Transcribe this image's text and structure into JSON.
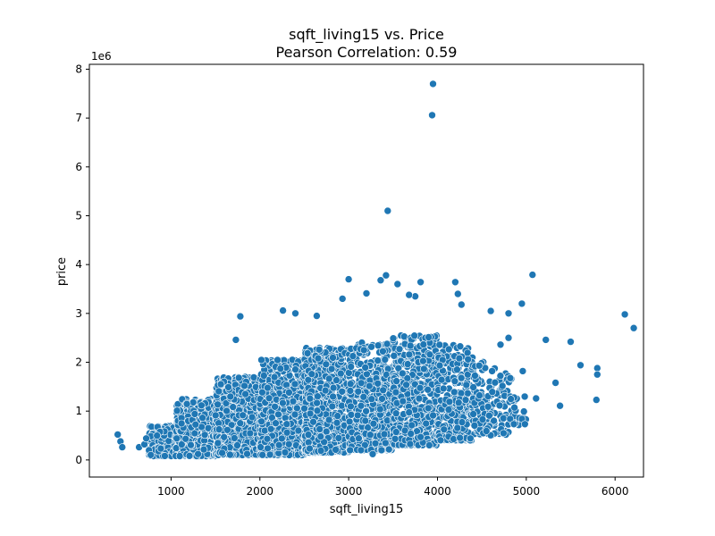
{
  "chart_data": {
    "type": "scatter",
    "title": "sqft_living15 vs. Price",
    "subtitle": "Pearson Correlation: 0.59",
    "xlabel": "sqft_living15",
    "ylabel": "price",
    "y_offset_label": "1e6",
    "xlim": [
      80,
      6320
    ],
    "ylim": [
      -0.35,
      8.1
    ],
    "x_ticks": [
      1000,
      2000,
      3000,
      4000,
      5000,
      6000
    ],
    "y_ticks": [
      0,
      1,
      2,
      3,
      4,
      5,
      6,
      7,
      8
    ],
    "y_unit": "1e6",
    "grid": false,
    "color": "#1f77b4",
    "series": [
      {
        "points": [
          [
            399,
            0.52
          ],
          [
            430,
            0.38
          ],
          [
            450,
            0.26
          ],
          [
            640,
            0.26
          ],
          [
            700,
            0.32
          ],
          [
            720,
            0.44
          ],
          [
            3950,
            7.7
          ],
          [
            3940,
            7.06
          ],
          [
            3440,
            5.1
          ],
          [
            3360,
            3.68
          ],
          [
            3000,
            3.7
          ],
          [
            3420,
            3.78
          ],
          [
            3550,
            3.6
          ],
          [
            5070,
            3.79
          ],
          [
            6110,
            2.98
          ],
          [
            6210,
            2.7
          ],
          [
            5800,
            1.88
          ],
          [
            5800,
            1.75
          ],
          [
            5790,
            1.23
          ],
          [
            5610,
            1.94
          ],
          [
            5500,
            2.42
          ],
          [
            5220,
            2.46
          ],
          [
            4950,
            3.2
          ],
          [
            4600,
            3.05
          ],
          [
            4230,
            3.4
          ],
          [
            4200,
            3.64
          ],
          [
            4270,
            3.18
          ],
          [
            3810,
            3.64
          ],
          [
            3750,
            3.35
          ],
          [
            3680,
            3.38
          ],
          [
            1780,
            2.94
          ],
          [
            1730,
            2.46
          ],
          [
            2260,
            3.06
          ],
          [
            2400,
            3.0
          ],
          [
            2640,
            2.95
          ],
          [
            2930,
            3.3
          ],
          [
            3200,
            3.41
          ],
          [
            4800,
            3.0
          ],
          [
            4960,
            1.82
          ],
          [
            5110,
            1.26
          ],
          [
            5380,
            1.11
          ],
          [
            5330,
            1.58
          ],
          [
            4370,
            0.44
          ],
          [
            3270,
            0.12
          ],
          [
            4710,
            2.36
          ],
          [
            4800,
            2.5
          ]
        ],
        "clusters": [
          {
            "x": [
              750,
              1050
            ],
            "y": [
              0.08,
              0.7
            ],
            "n": 260
          },
          {
            "x": [
              1050,
              1500
            ],
            "y": [
              0.08,
              1.25
            ],
            "n": 600
          },
          {
            "x": [
              1500,
              2000
            ],
            "y": [
              0.1,
              1.7
            ],
            "n": 800
          },
          {
            "x": [
              2000,
              2500
            ],
            "y": [
              0.1,
              2.05
            ],
            "n": 850
          },
          {
            "x": [
              2500,
              3000
            ],
            "y": [
              0.15,
              2.3
            ],
            "n": 780
          },
          {
            "x": [
              3000,
              3500
            ],
            "y": [
              0.2,
              2.4
            ],
            "n": 650
          },
          {
            "x": [
              3500,
              4000
            ],
            "y": [
              0.3,
              2.55
            ],
            "n": 560
          },
          {
            "x": [
              4000,
              4400
            ],
            "y": [
              0.4,
              2.4
            ],
            "n": 300
          },
          {
            "x": [
              4400,
              4800
            ],
            "y": [
              0.5,
              2.05
            ],
            "n": 140
          },
          {
            "x": [
              4800,
              5000
            ],
            "y": [
              0.7,
              1.7
            ],
            "n": 30
          }
        ]
      }
    ]
  }
}
